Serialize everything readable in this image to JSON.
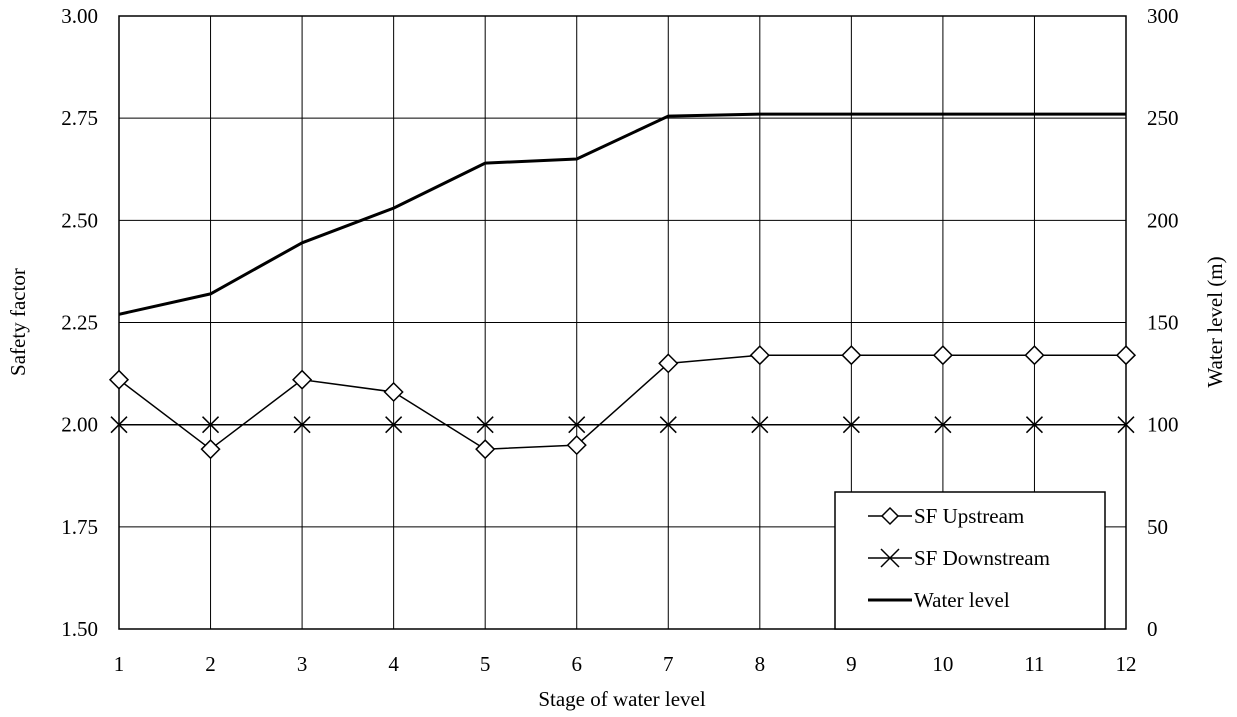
{
  "chart_data": {
    "type": "line",
    "xlabel": "Stage of water level",
    "ylabel_left": "Safety factor",
    "ylabel_right": "Water level (m)",
    "x": [
      1,
      2,
      3,
      4,
      5,
      6,
      7,
      8,
      9,
      10,
      11,
      12
    ],
    "x_tick_labels": [
      "1",
      "2",
      "3",
      "4",
      "5",
      "6",
      "7",
      "8",
      "9",
      "10",
      "11",
      "12"
    ],
    "ylim_left": [
      1.5,
      3.0
    ],
    "ylim_right": [
      0,
      300
    ],
    "y_left_ticks": [
      1.5,
      1.75,
      2.0,
      2.25,
      2.5,
      2.75,
      3.0
    ],
    "y_left_tick_labels": [
      "1.50",
      "1.75",
      "2.00",
      "2.25",
      "2.50",
      "2.75",
      "3.00"
    ],
    "y_right_ticks": [
      0,
      50,
      100,
      150,
      200,
      250,
      300
    ],
    "y_right_tick_labels": [
      "0",
      "50",
      "100",
      "150",
      "200",
      "250",
      "300"
    ],
    "grid": true,
    "legend_position": "bottom-right",
    "series": [
      {
        "name": "SF Upstream",
        "axis": "left",
        "marker": "diamond",
        "values": [
          2.11,
          1.94,
          2.11,
          2.08,
          1.94,
          1.95,
          2.15,
          2.17,
          2.17,
          2.17,
          2.17,
          2.17
        ]
      },
      {
        "name": "SF Downstream",
        "axis": "left",
        "marker": "x",
        "values": [
          2.0,
          2.0,
          2.0,
          2.0,
          2.0,
          2.0,
          2.0,
          2.0,
          2.0,
          2.0,
          2.0,
          2.0
        ]
      },
      {
        "name": "Water level",
        "axis": "right",
        "marker": "none",
        "values": [
          154,
          164,
          189,
          206,
          228,
          230,
          251,
          252,
          252,
          252,
          252,
          252
        ]
      }
    ]
  }
}
